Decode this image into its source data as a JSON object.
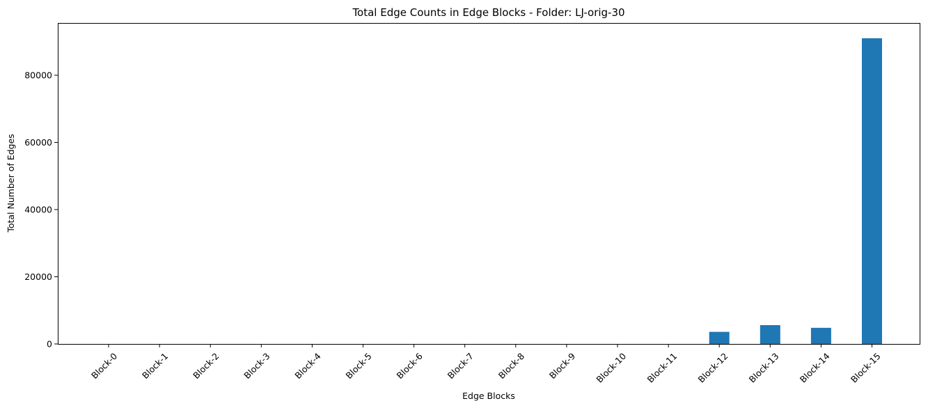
{
  "chart_data": {
    "type": "bar",
    "title": "Total Edge Counts in Edge Blocks - Folder: LJ-orig-30",
    "xlabel": "Edge Blocks",
    "ylabel": "Total Number of Edges",
    "categories": [
      "Block-0",
      "Block-1",
      "Block-2",
      "Block-3",
      "Block-4",
      "Block-5",
      "Block-6",
      "Block-7",
      "Block-8",
      "Block-9",
      "Block-10",
      "Block-11",
      "Block-12",
      "Block-13",
      "Block-14",
      "Block-15"
    ],
    "values": [
      0,
      0,
      0,
      0,
      0,
      0,
      0,
      0,
      0,
      0,
      0,
      0,
      3600,
      5600,
      4800,
      91000
    ],
    "yticks": [
      0,
      20000,
      40000,
      60000,
      80000
    ],
    "ylim": [
      0,
      95550
    ],
    "grid": false,
    "bar_color": "#1f77b4"
  }
}
